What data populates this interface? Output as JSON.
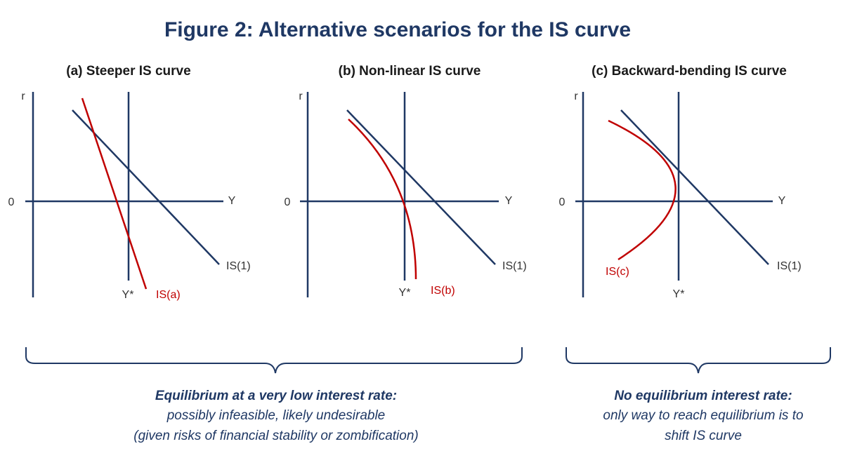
{
  "title": "Figure 2: Alternative scenarios for the IS curve",
  "colors": {
    "navy": "#1F3864",
    "red": "#C00000",
    "axis_text": "#333333"
  },
  "panels": [
    {
      "title": "(a) Steeper IS curve",
      "y_axis_label": "r",
      "origin_label": "0",
      "x_axis_label": "Y",
      "ystar_label": "Y*",
      "is1_label": "IS(1)",
      "alt_label": "IS(a)",
      "alt_shape": "steep-line"
    },
    {
      "title": "(b) Non-linear IS curve",
      "y_axis_label": "r",
      "origin_label": "0",
      "x_axis_label": "Y",
      "ystar_label": "Y*",
      "is1_label": "IS(1)",
      "alt_label": "IS(b)",
      "alt_shape": "concave-curve"
    },
    {
      "title": "(c) Backward-bending IS curve",
      "y_axis_label": "r",
      "origin_label": "0",
      "x_axis_label": "Y",
      "ystar_label": "Y*",
      "is1_label": "IS(1)",
      "alt_label": "IS(c)",
      "alt_shape": "backward-bend"
    }
  ],
  "captions": [
    {
      "heading": "Equilibrium at a very low interest rate:",
      "lines": [
        "possibly infeasible, likely undesirable",
        "(given risks of financial stability or zombification)"
      ]
    },
    {
      "heading": "No equilibrium interest rate:",
      "lines": [
        "only way to reach equilibrium is to",
        "shift IS curve"
      ]
    }
  ]
}
